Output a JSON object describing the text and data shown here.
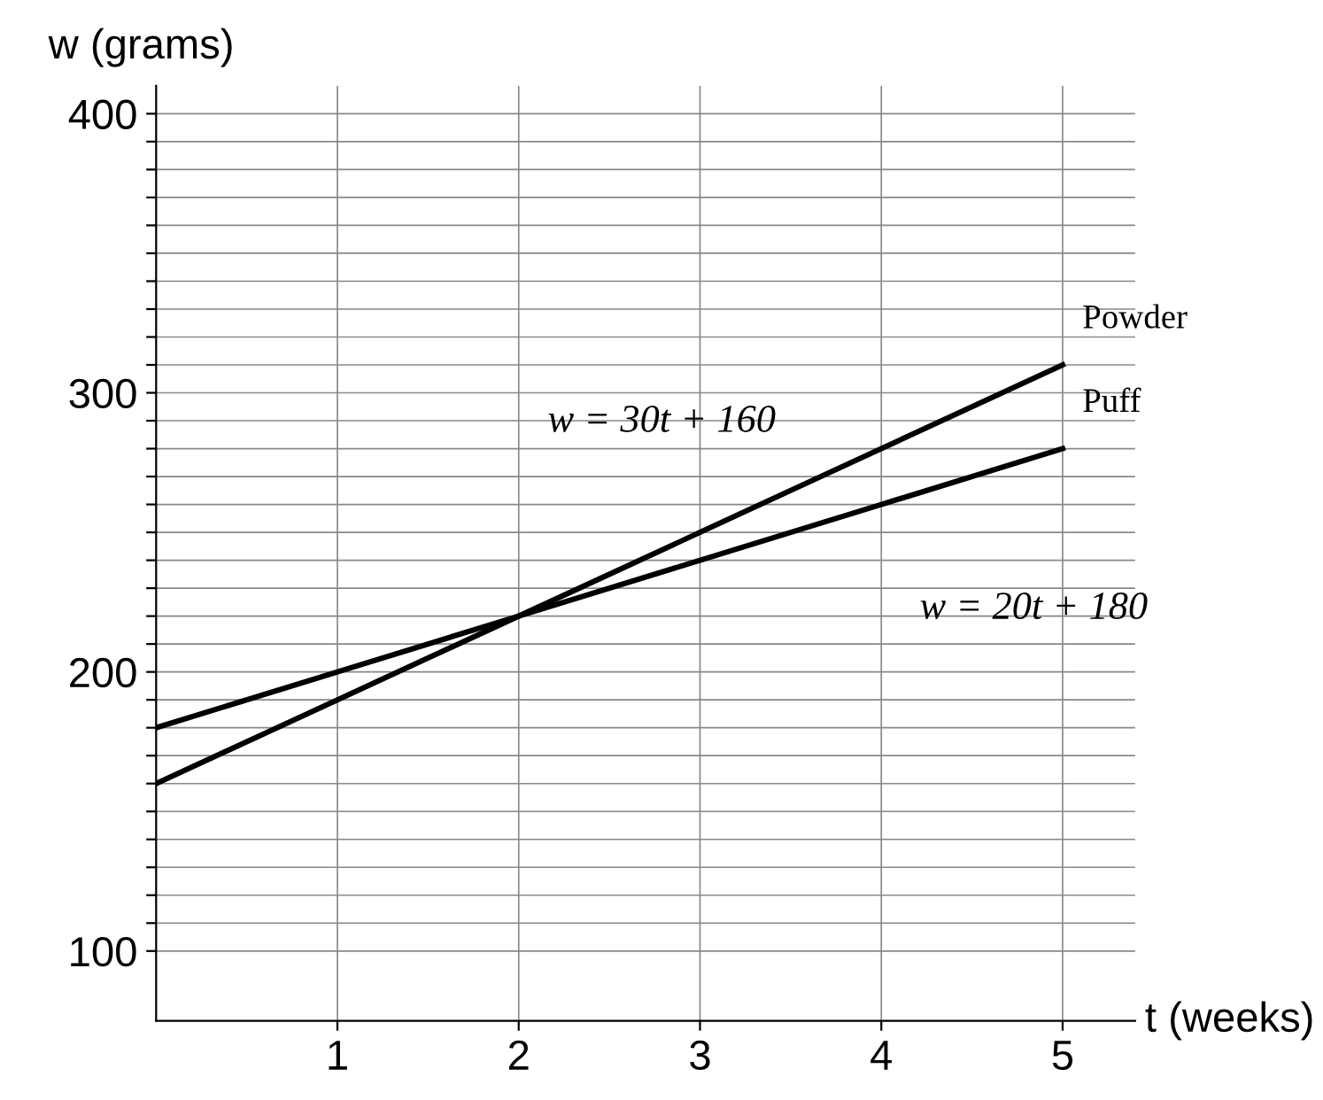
{
  "chart_data": {
    "type": "line",
    "xlabel": "t (weeks)",
    "ylabel": "w (grams)",
    "x": [
      0,
      1,
      2,
      3,
      4,
      5
    ],
    "series": [
      {
        "name": "Powder",
        "color": "#000000",
        "values": [
          160,
          190,
          220,
          250,
          280,
          310
        ]
      },
      {
        "name": "Puff",
        "color": "#000000",
        "values": [
          180,
          200,
          220,
          240,
          260,
          280
        ]
      }
    ],
    "annotations": [
      "w = 30t + 160",
      "w = 20t + 180"
    ],
    "xlim": [
      0,
      5.4
    ],
    "xticks": [
      1,
      2,
      3,
      4,
      5
    ],
    "ylim": [
      75,
      410
    ],
    "yticks": [
      100,
      {
        "value": 110,
        "label": null
      },
      {
        "value": 120,
        "label": null
      },
      {
        "value": 130,
        "label": null
      },
      {
        "value": 140,
        "label": null
      },
      {
        "value": 150,
        "label": null
      },
      {
        "value": 160,
        "label": null
      },
      {
        "value": 170,
        "label": null
      },
      {
        "value": 180,
        "label": null
      },
      {
        "value": 190,
        "label": null
      },
      200,
      {
        "value": 210,
        "label": null
      },
      {
        "value": 220,
        "label": null
      },
      {
        "value": 230,
        "label": null
      },
      {
        "value": 240,
        "label": null
      },
      {
        "value": 250,
        "label": null
      },
      {
        "value": 260,
        "label": null
      },
      {
        "value": 270,
        "label": null
      },
      {
        "value": 280,
        "label": null
      },
      {
        "value": 290,
        "label": null
      },
      300,
      {
        "value": 310,
        "label": null
      },
      {
        "value": 320,
        "label": null
      },
      {
        "value": 330,
        "label": null
      },
      {
        "value": 340,
        "label": null
      },
      {
        "value": 350,
        "label": null
      },
      {
        "value": 360,
        "label": null
      },
      {
        "value": 370,
        "label": null
      },
      {
        "value": 380,
        "label": null
      },
      {
        "value": 390,
        "label": null
      },
      400
    ],
    "grid": true,
    "legend": false,
    "marker": "none",
    "line_style": "solid"
  }
}
